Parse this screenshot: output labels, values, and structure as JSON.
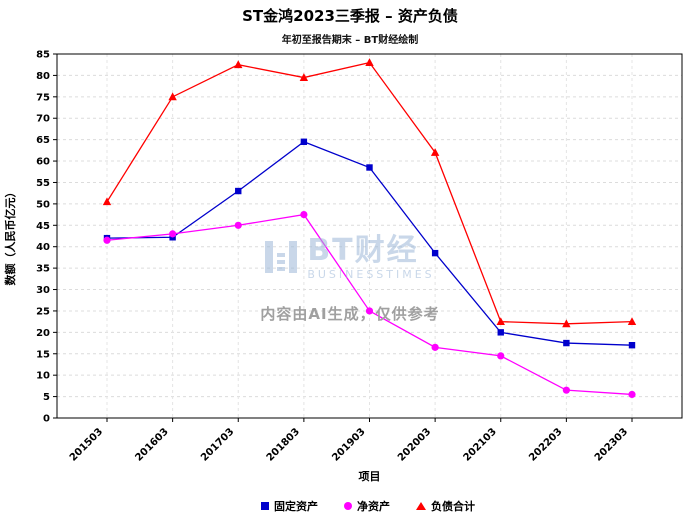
{
  "title": "ST金鸿2023三季报 – 资产负债",
  "subtitle": "年初至报告期末 – BT财经绘制",
  "watermark": {
    "logo_text": "BT财经",
    "logo_sub": "BUSINESSTIMES",
    "disclaimer": "内容由AI生成，仅供参考"
  },
  "chart_data": {
    "type": "line",
    "title": "ST金鸿2023三季报 – 资产负债",
    "subtitle": "年初至报告期末 – BT财经绘制",
    "categories": [
      "201503",
      "201603",
      "201703",
      "201803",
      "201903",
      "202003",
      "202103",
      "202203",
      "202303"
    ],
    "series": [
      {
        "name": "固定资产",
        "color": "#0000cc",
        "marker": "square",
        "values": [
          42,
          42.2,
          53,
          64.5,
          58.5,
          38.5,
          20,
          17.5,
          17
        ]
      },
      {
        "name": "净资产",
        "color": "#ff00ff",
        "marker": "circle",
        "values": [
          41.5,
          43,
          45,
          47.5,
          25,
          16.5,
          14.5,
          6.5,
          5.5
        ]
      },
      {
        "name": "负债合计",
        "color": "#ff0000",
        "marker": "triangle",
        "values": [
          50.5,
          75,
          82.5,
          79.5,
          83,
          62,
          22.5,
          22,
          22.5
        ]
      }
    ],
    "xlabel": "项目",
    "ylabel": "数额（人民币亿元）",
    "ylim": [
      0,
      85
    ],
    "ytick_step": 5,
    "grid": true,
    "legend_position": "bottom"
  }
}
